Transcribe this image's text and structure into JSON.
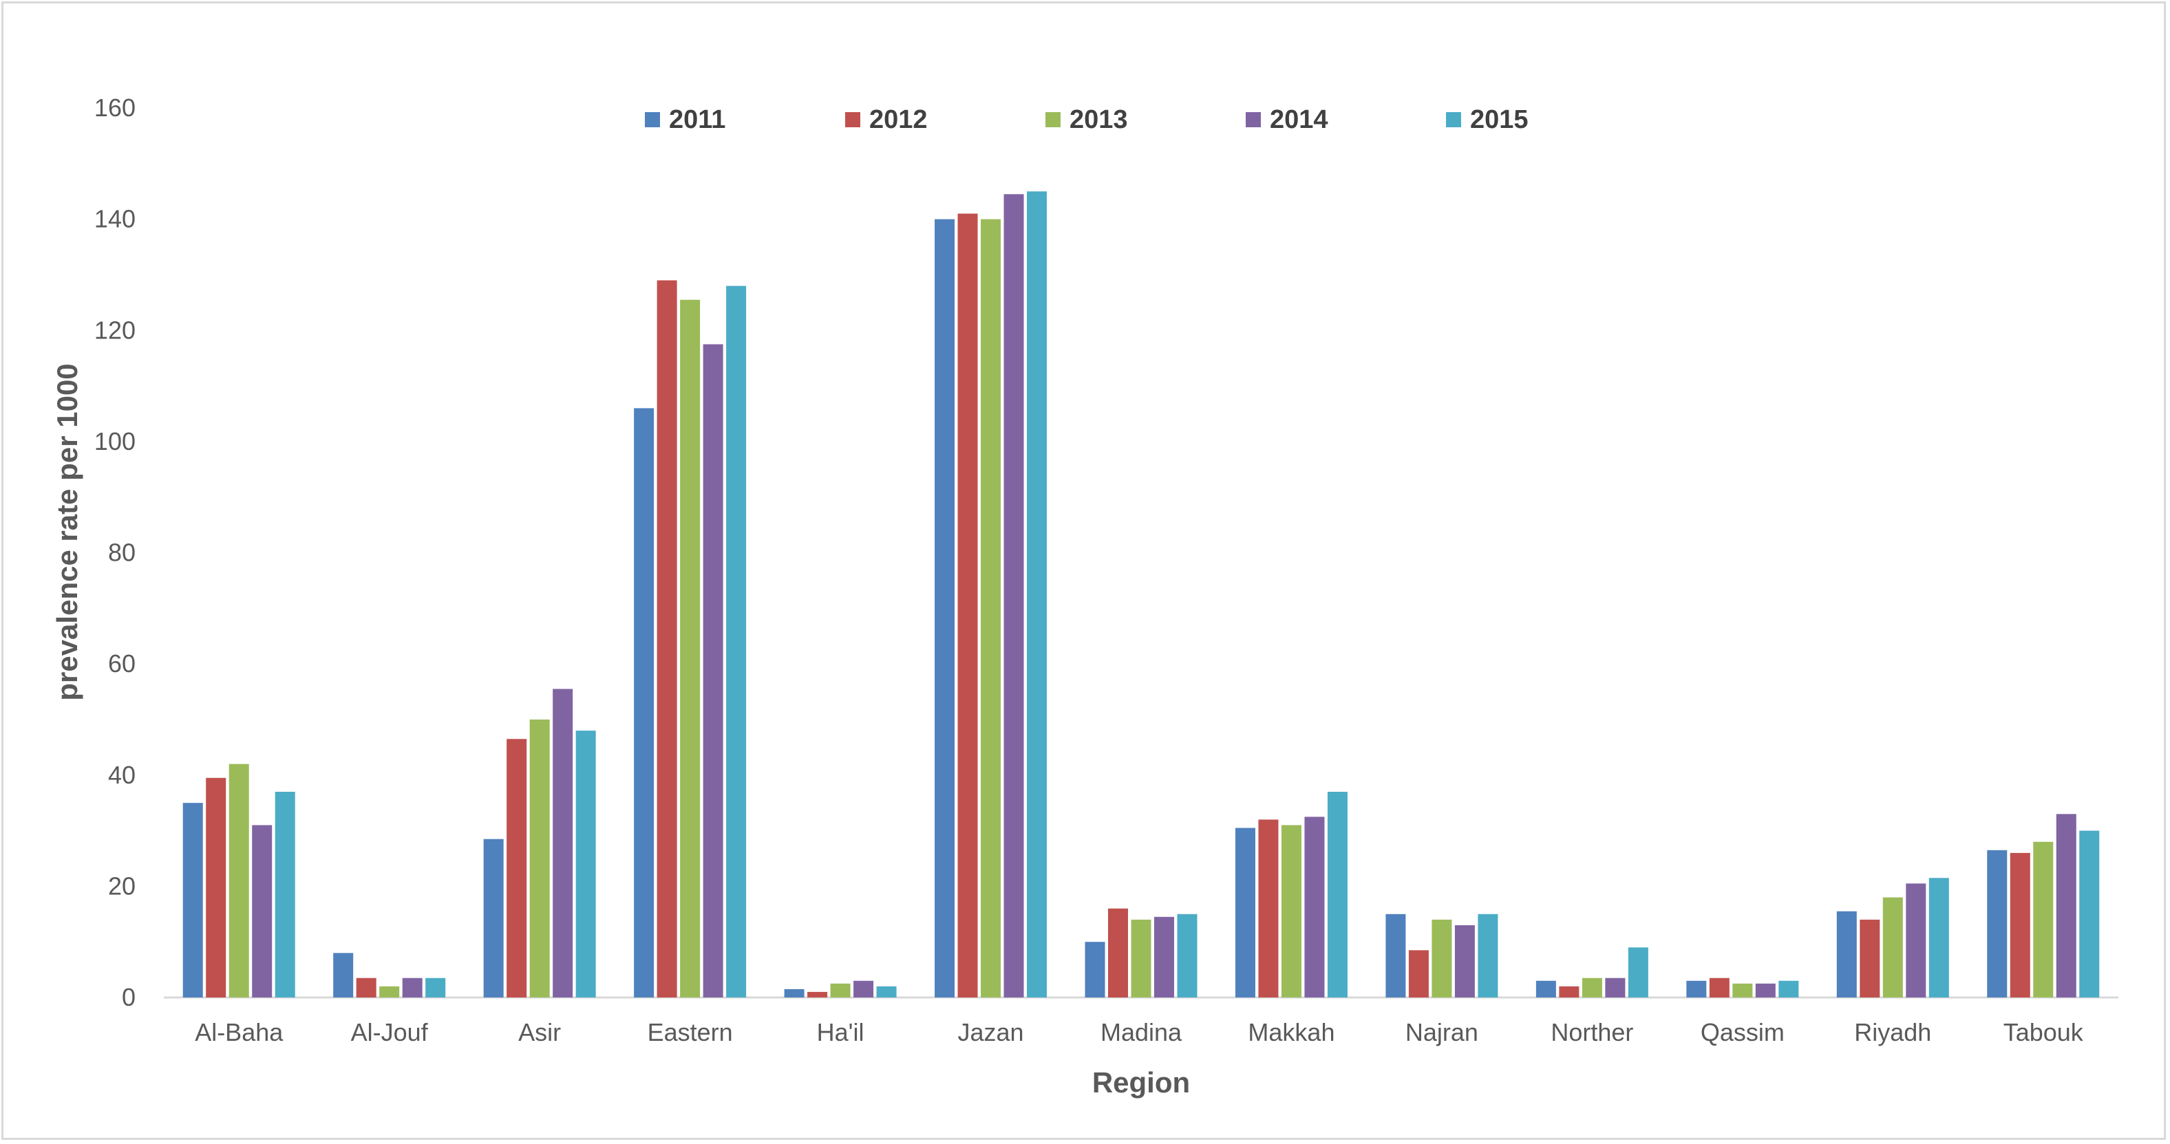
{
  "chart_data": {
    "type": "bar",
    "xlabel": "Region",
    "ylabel": "prevalence rate per 1000",
    "ylim": [
      0,
      160
    ],
    "yticks": [
      "0",
      "20",
      "40",
      "60",
      "80",
      "100",
      "120",
      "140",
      "160"
    ],
    "grid": false,
    "legend_position": "top-center",
    "categories": [
      "Al-Baha",
      "Al-Jouf",
      "Asir",
      "Eastern",
      "Ha'il",
      "Jazan",
      "Madina",
      "Makkah",
      "Najran",
      "Norther",
      "Qassim",
      "Riyadh",
      "Tabouk"
    ],
    "series": [
      {
        "name": "2011",
        "color": "#4f81bd",
        "values": [
          35,
          8,
          28.5,
          106,
          1.5,
          140,
          10,
          30.5,
          15,
          3,
          3,
          15.5,
          26.5
        ]
      },
      {
        "name": "2012",
        "color": "#c0504d",
        "values": [
          39.5,
          3.5,
          46.5,
          129,
          1,
          141,
          16,
          32,
          8.5,
          2,
          3.5,
          14,
          26
        ]
      },
      {
        "name": "2013",
        "color": "#9bbb59",
        "values": [
          42,
          2,
          50,
          125.5,
          2.5,
          140,
          14,
          31,
          14,
          3.5,
          2.5,
          18,
          28
        ]
      },
      {
        "name": "2014",
        "color": "#8064a2",
        "values": [
          31,
          3.5,
          55.5,
          117.5,
          3,
          144.5,
          14.5,
          32.5,
          13,
          3.5,
          2.5,
          20.5,
          33
        ]
      },
      {
        "name": "2015",
        "color": "#4bacc6",
        "values": [
          37,
          3.5,
          48,
          128,
          2,
          145,
          15,
          37,
          15,
          9,
          3,
          21.5,
          30
        ]
      }
    ]
  }
}
